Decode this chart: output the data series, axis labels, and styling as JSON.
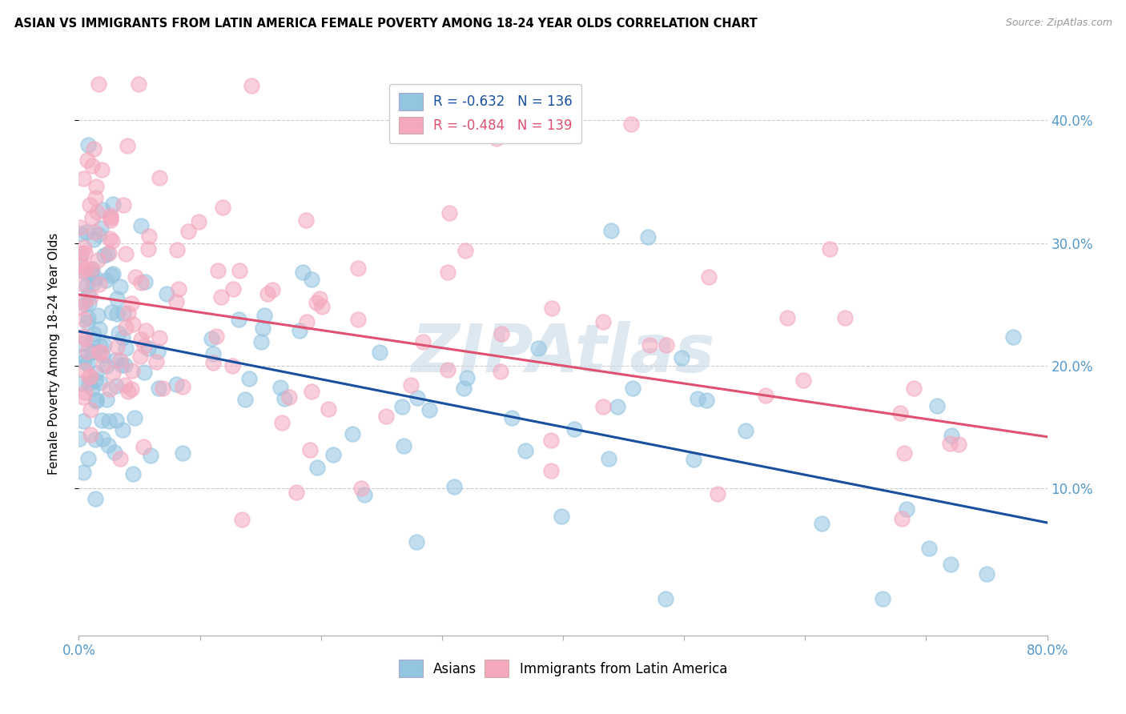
{
  "title": "ASIAN VS IMMIGRANTS FROM LATIN AMERICA FEMALE POVERTY AMONG 18-24 YEAR OLDS CORRELATION CHART",
  "source": "Source: ZipAtlas.com",
  "ylabel": "Female Poverty Among 18-24 Year Olds",
  "xlim": [
    0.0,
    0.8
  ],
  "ylim": [
    -0.02,
    0.44
  ],
  "yticks": [
    0.1,
    0.2,
    0.3,
    0.4
  ],
  "ytick_labels": [
    "10.0%",
    "20.0%",
    "30.0%",
    "40.0%"
  ],
  "xticks": [
    0.0,
    0.1,
    0.2,
    0.3,
    0.4,
    0.5,
    0.6,
    0.7,
    0.8
  ],
  "xtick_labels": [
    "0.0%",
    "",
    "",
    "",
    "",
    "",
    "",
    "",
    "80.0%"
  ],
  "legend_blue_label": "R = -0.632   N = 136",
  "legend_pink_label": "R = -0.484   N = 139",
  "legend_bottom_blue": "Asians",
  "legend_bottom_pink": "Immigrants from Latin America",
  "blue_color": "#93c4e0",
  "pink_color": "#f4a8be",
  "blue_line_color": "#1a4fa0",
  "pink_line_color": "#e05070",
  "blue_intercept": 0.228,
  "blue_slope": -0.195,
  "pink_intercept": 0.258,
  "pink_slope": -0.145,
  "background_color": "#ffffff",
  "watermark": "ZIPAtlas",
  "watermark_color": "#c8dae8",
  "seed": 99
}
